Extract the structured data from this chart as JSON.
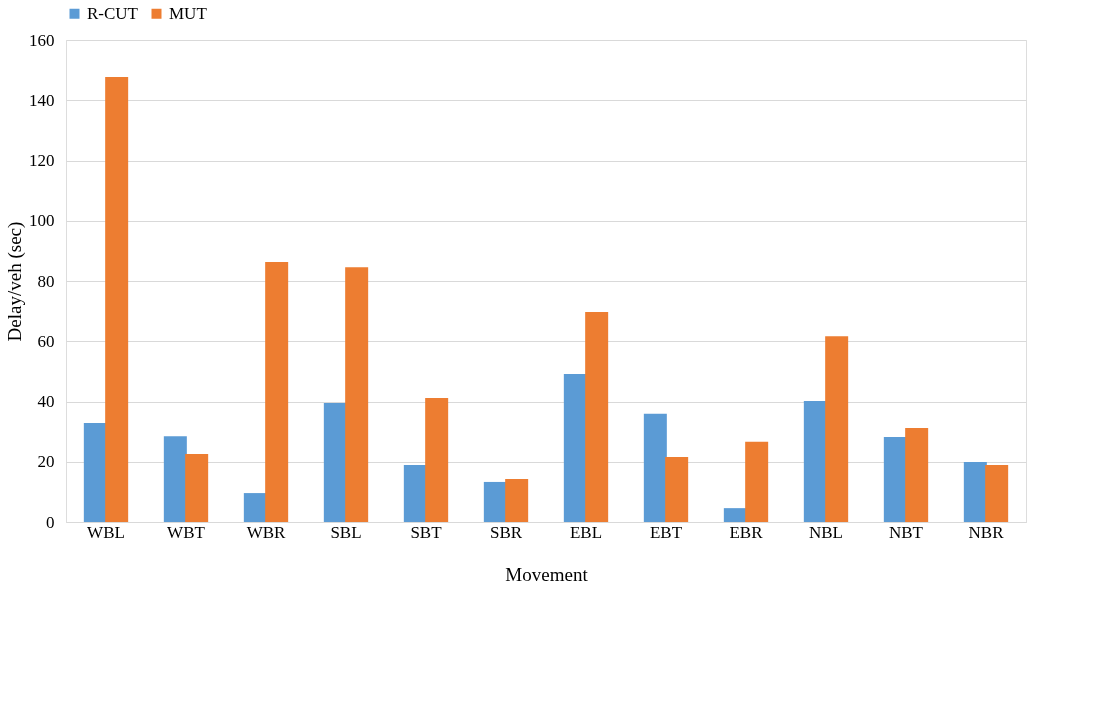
{
  "chart_data": {
    "type": "bar",
    "xlabel": "Movement",
    "ylabel": "Delay/veh (sec)",
    "categories": [
      "WBL",
      "WBT",
      "WBR",
      "SBL",
      "SBT",
      "SBR",
      "EBL",
      "EBT",
      "EBR",
      "NBL",
      "NBT",
      "NBR"
    ],
    "series": [
      {
        "name": "R-CUT",
        "color": "#5b9bd5",
        "values": [
          32.9,
          28.5,
          9.6,
          39.5,
          18.9,
          13.3,
          49.1,
          35.9,
          4.6,
          40.2,
          28.2,
          19.9
        ]
      },
      {
        "name": "MUT",
        "color": "#ed7d31",
        "values": [
          147.7,
          22.6,
          86.3,
          84.6,
          41.2,
          14.3,
          69.7,
          21.6,
          26.6,
          61.7,
          31.2,
          18.9
        ]
      }
    ],
    "ylim": [
      0,
      160
    ],
    "yticks": [
      0,
      20,
      40,
      60,
      80,
      100,
      120,
      140,
      160
    ],
    "grid": "y",
    "legend": "top"
  }
}
